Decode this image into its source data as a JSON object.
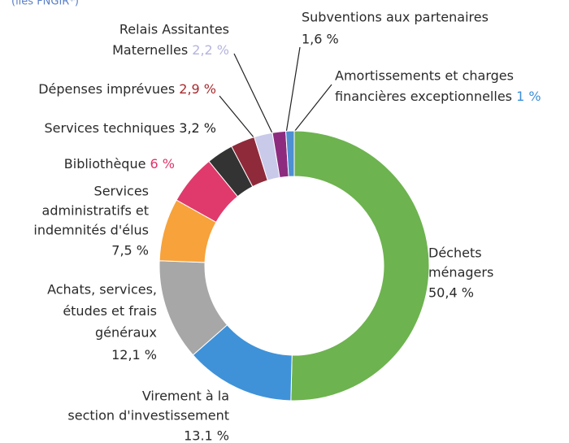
{
  "note": "(liés FNGIR*)",
  "chart_data": {
    "type": "pie",
    "donut": true,
    "categories": [
      [
        "Déchets",
        "ménagers"
      ],
      [
        "Virement à la",
        "section d'investissement"
      ],
      [
        "Achats, services,",
        "études et frais",
        "généraux"
      ],
      [
        "Services",
        "administratifs et",
        "indemnités d'élus"
      ],
      [
        "Bibliothèque"
      ],
      [
        "Services techniques"
      ],
      [
        "Dépenses imprévues"
      ],
      [
        "Relais Assitantes",
        "Maternelles"
      ],
      [
        "Subventions aux partenaires"
      ],
      [
        "Amortissements et charges",
        "financières exceptionnelles"
      ]
    ],
    "values": [
      50.4,
      13.1,
      12.1,
      7.5,
      6,
      3.2,
      2.9,
      2.2,
      1.6,
      1
    ],
    "value_labels": [
      "50,4 %",
      "13.1 %",
      "12,1 %",
      "7,5 %",
      "6 %",
      "3,2 %",
      "2,9 %",
      "2,2 %",
      "1,6 %",
      "1 %"
    ],
    "colors": [
      "#6db34f",
      "#3f92d8",
      "#a7a7a7",
      "#f7a23a",
      "#e03a6c",
      "#333333",
      "#8f2a3a",
      "#c9c9ea",
      "#8d2c7e",
      "#4f8fd3"
    ],
    "value_label_colors": [
      "#6db34f",
      "#3f92d8",
      "#555555",
      "#f39a2e",
      "#e0336a",
      "#222222",
      "#a82a2e",
      "#b4b4de",
      "#8a2a7a",
      "#3d8fd6"
    ]
  }
}
